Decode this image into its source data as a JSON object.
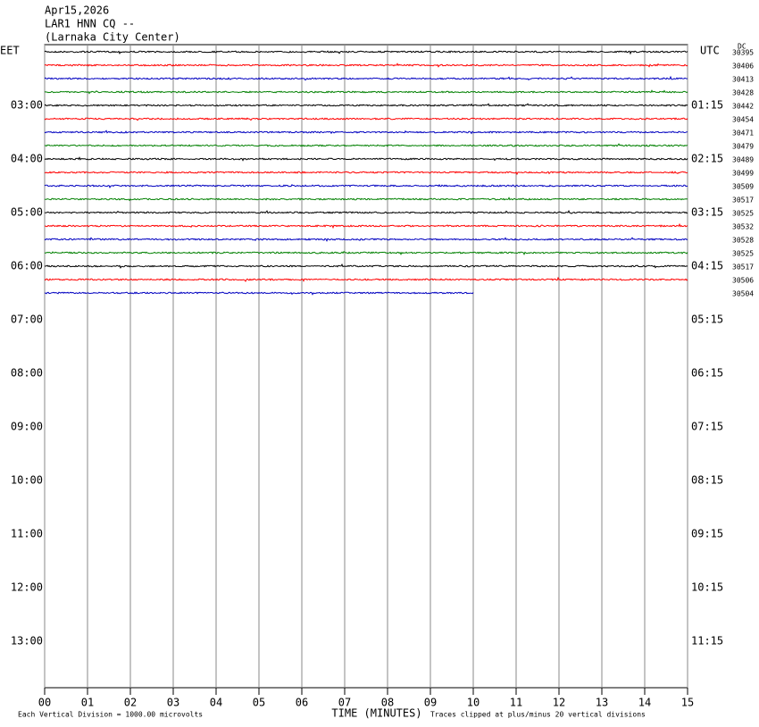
{
  "chart_data": {
    "type": "helicorder",
    "header": [
      "Apr15,2026",
      "LAR1 HNN CQ --",
      "(Larnaka City Center)"
    ],
    "left_zone": "EET",
    "right_zone": "UTC",
    "dc_label": "DC",
    "left_times": [
      "03:00",
      "04:00",
      "05:00",
      "06:00",
      "07:00",
      "08:00",
      "09:00",
      "10:00",
      "11:00",
      "12:00",
      "13:00"
    ],
    "right_times": [
      "01:15",
      "02:15",
      "03:15",
      "04:15",
      "05:15",
      "06:15",
      "07:15",
      "08:15",
      "09:15",
      "10:15",
      "11:15"
    ],
    "xlim": [
      0,
      15
    ],
    "xticks": [
      {
        "value": 0,
        "label": "00"
      },
      {
        "value": 1,
        "label": "01"
      },
      {
        "value": 2,
        "label": "02"
      },
      {
        "value": 3,
        "label": "03"
      },
      {
        "value": 4,
        "label": "04"
      },
      {
        "value": 5,
        "label": "05"
      },
      {
        "value": 6,
        "label": "06"
      },
      {
        "value": 7,
        "label": "07"
      },
      {
        "value": 8,
        "label": "08"
      },
      {
        "value": 9,
        "label": "09"
      },
      {
        "value": 10,
        "label": "10"
      },
      {
        "value": 11,
        "label": "11"
      },
      {
        "value": 12,
        "label": "12"
      },
      {
        "value": 13,
        "label": "13"
      },
      {
        "value": 14,
        "label": "14"
      },
      {
        "value": 15,
        "label": "15"
      }
    ],
    "x_label": "TIME (MINUTES)",
    "note_left": "Each Vertical Division = 1000.00 microvolts",
    "note_right": "Traces clipped at plus/minus 20 vertical divisions",
    "traces": [
      {
        "color": "#000000",
        "dc": 30395,
        "extent": [
          0,
          15
        ]
      },
      {
        "color": "#ff0000",
        "dc": 30406,
        "extent": [
          0,
          15
        ]
      },
      {
        "color": "#0000c0",
        "dc": 30413,
        "extent": [
          0,
          15
        ]
      },
      {
        "color": "#008000",
        "dc": 30428,
        "extent": [
          0,
          15
        ]
      },
      {
        "color": "#000000",
        "dc": 30442,
        "extent": [
          0,
          15
        ]
      },
      {
        "color": "#ff0000",
        "dc": 30454,
        "extent": [
          0,
          15
        ]
      },
      {
        "color": "#0000c0",
        "dc": 30471,
        "extent": [
          0,
          15
        ]
      },
      {
        "color": "#008000",
        "dc": 30479,
        "extent": [
          0,
          15
        ]
      },
      {
        "color": "#000000",
        "dc": 30489,
        "extent": [
          0,
          15
        ]
      },
      {
        "color": "#ff0000",
        "dc": 30499,
        "extent": [
          0,
          15
        ]
      },
      {
        "color": "#0000c0",
        "dc": 30509,
        "extent": [
          0,
          15
        ]
      },
      {
        "color": "#008000",
        "dc": 30517,
        "extent": [
          0,
          15
        ]
      },
      {
        "color": "#000000",
        "dc": 30525,
        "extent": [
          0,
          15
        ]
      },
      {
        "color": "#ff0000",
        "dc": 30532,
        "extent": [
          0,
          15
        ]
      },
      {
        "color": "#0000c0",
        "dc": 30528,
        "extent": [
          0,
          15
        ]
      },
      {
        "color": "#008000",
        "dc": 30525,
        "extent": [
          0,
          15
        ]
      },
      {
        "color": "#000000",
        "dc": 30517,
        "extent": [
          0,
          15
        ]
      },
      {
        "color": "#ff0000",
        "dc": 30506,
        "extent": [
          0,
          15
        ]
      },
      {
        "color": "#0000c0",
        "dc": 30504,
        "extent": [
          0,
          10
        ]
      }
    ]
  }
}
